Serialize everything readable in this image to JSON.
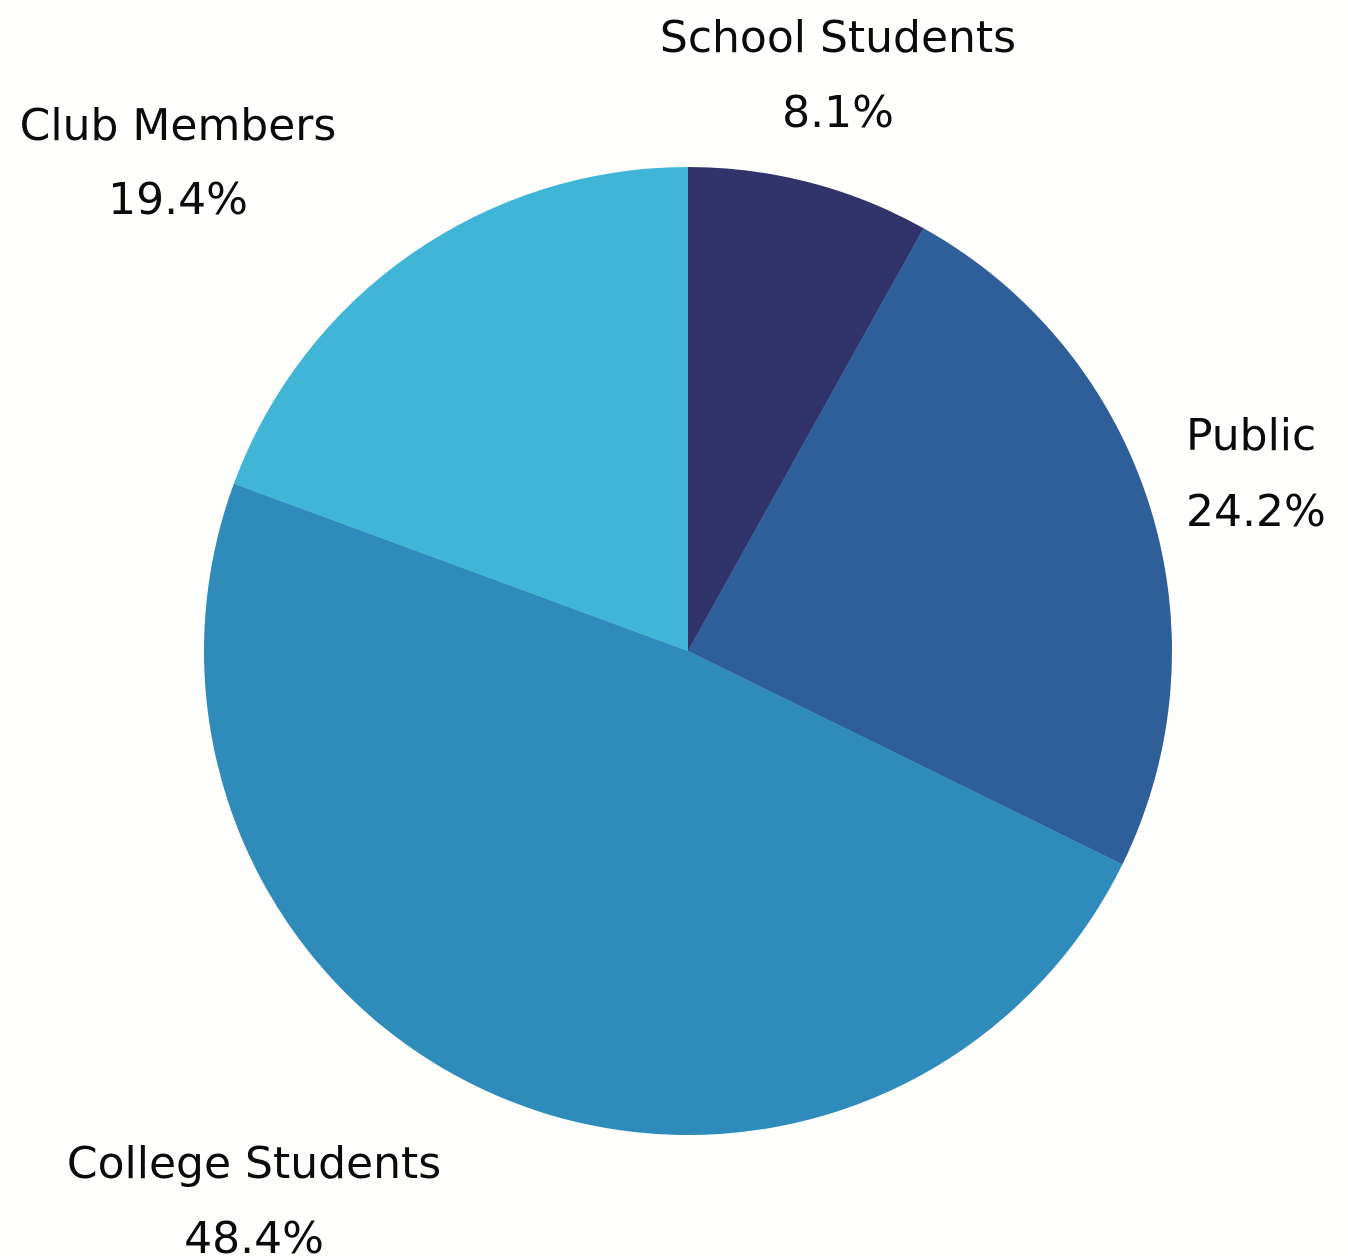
{
  "chart_data": {
    "type": "pie",
    "start_angle": "12 o'clock",
    "direction": "clockwise",
    "slices": [
      {
        "category": "School Students",
        "value": 8.1,
        "percent_label": "8.1%",
        "color": "#30346b"
      },
      {
        "category": "Public",
        "value": 24.2,
        "percent_label": "24.2%",
        "color": "#2f5f98"
      },
      {
        "category": "College Students",
        "value": 48.4,
        "percent_label": "48.4%",
        "color": "#2e8bba"
      },
      {
        "category": "Club Members",
        "value": 19.4,
        "percent_label": "19.4%",
        "color": "#41b5d6"
      }
    ]
  }
}
